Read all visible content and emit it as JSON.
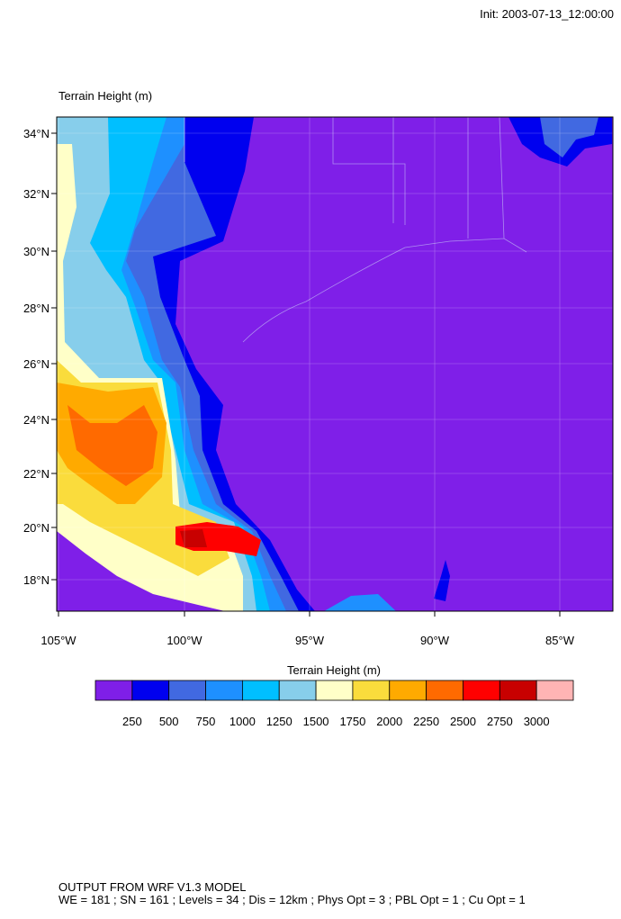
{
  "header": {
    "init": "Init: 2003-07-13_12:00:00"
  },
  "plot": {
    "title": "Terrain Height   (m)",
    "lat_labels": [
      "34°N",
      "32°N",
      "30°N",
      "28°N",
      "26°N",
      "24°N",
      "22°N",
      "20°N",
      "18°N"
    ],
    "lon_labels": [
      "105°W",
      "100°W",
      "95°W",
      "90°W",
      "85°W"
    ]
  },
  "colorbar": {
    "title": "Terrain Height  (m)",
    "colors": [
      "#7f1fe8",
      "#0000ef",
      "#4169e1",
      "#1e90ff",
      "#00bfff",
      "#87ceeb",
      "#ffffc8",
      "#fadc3c",
      "#ffaa00",
      "#ff6a00",
      "#ff0000",
      "#c80000",
      "#ffb4b4"
    ],
    "labels": [
      250,
      500,
      750,
      1000,
      1250,
      1500,
      1750,
      2000,
      2250,
      2500,
      2750,
      3000
    ]
  },
  "footer": {
    "lines": [
      "OUTPUT FROM WRF V1.3 MODEL",
      "WE = 181 ; SN = 161 ; Levels = 34 ; Dis = 12km ; Phys Opt = 3 ; PBL Opt = 1 ; Cu Opt = 1"
    ]
  }
}
